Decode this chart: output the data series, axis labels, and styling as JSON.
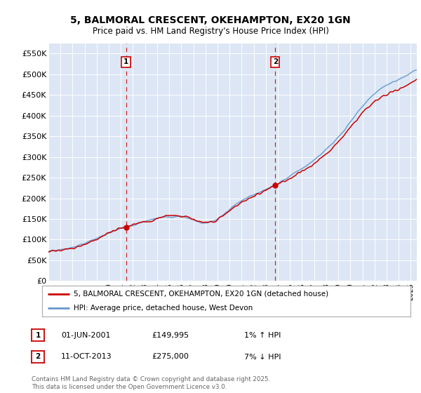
{
  "title": "5, BALMORAL CRESCENT, OKEHAMPTON, EX20 1GN",
  "subtitle": "Price paid vs. HM Land Registry's House Price Index (HPI)",
  "background_color": "#ffffff",
  "plot_bg_color": "#dce6f5",
  "grid_color": "#ffffff",
  "ylim": [
    0,
    575000
  ],
  "yticks": [
    0,
    50000,
    100000,
    150000,
    200000,
    250000,
    300000,
    350000,
    400000,
    450000,
    500000,
    550000
  ],
  "ytick_labels": [
    "£0",
    "£50K",
    "£100K",
    "£150K",
    "£200K",
    "£250K",
    "£300K",
    "£350K",
    "£400K",
    "£450K",
    "£500K",
    "£550K"
  ],
  "line1_color": "#cc0000",
  "line2_color": "#6699cc",
  "purchase1_date": 2001.42,
  "purchase1_price": 149995,
  "purchase2_date": 2013.78,
  "purchase2_price": 275000,
  "legend1_label": "5, BALMORAL CRESCENT, OKEHAMPTON, EX20 1GN (detached house)",
  "legend2_label": "HPI: Average price, detached house, West Devon",
  "ann1_date": "01-JUN-2001",
  "ann1_price": "£149,995",
  "ann1_hpi": "1% ↑ HPI",
  "ann2_date": "11-OCT-2013",
  "ann2_price": "£275,000",
  "ann2_hpi": "7% ↓ HPI",
  "footer": "Contains HM Land Registry data © Crown copyright and database right 2025.\nThis data is licensed under the Open Government Licence v3.0."
}
